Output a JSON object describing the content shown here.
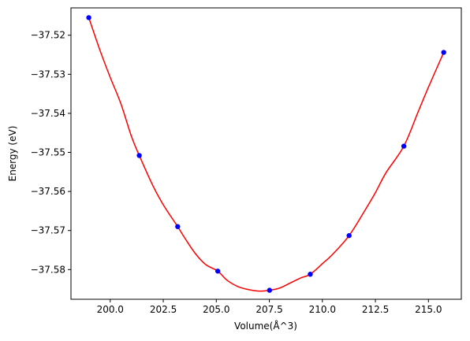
{
  "chart_data": {
    "type": "scatter",
    "title": "",
    "xlabel": "Volume(Å^3)",
    "ylabel": "Energy (eV)",
    "xlim": [
      198.15,
      216.55
    ],
    "ylim": [
      -37.5876,
      -37.513
    ],
    "x_ticks": [
      200.0,
      202.5,
      205.0,
      207.5,
      210.0,
      212.5,
      215.0
    ],
    "x_tick_labels": [
      "200.0",
      "202.5",
      "205.0",
      "207.5",
      "210.0",
      "212.5",
      "215.0"
    ],
    "y_ticks": [
      -37.52,
      -37.53,
      -37.54,
      -37.55,
      -37.56,
      -37.57,
      -37.58
    ],
    "y_tick_labels": [
      "−37.52",
      "−37.53",
      "−37.54",
      "−37.55",
      "−37.56",
      "−37.57",
      "−37.58"
    ],
    "grid": false,
    "series": [
      {
        "kind": "points",
        "color": "#0000ff",
        "x": [
          198.99,
          201.37,
          203.18,
          205.07,
          207.51,
          209.43,
          211.26,
          213.84,
          215.72
        ],
        "y": [
          -37.5155,
          -37.5508,
          -37.569,
          -37.5804,
          -37.5853,
          -37.5812,
          -37.5713,
          -37.5484,
          -37.5244
        ]
      },
      {
        "kind": "fit-curve",
        "color": "#ff0000",
        "x": [
          198.99,
          199.5,
          200.0,
          200.5,
          201.0,
          201.37,
          202.0,
          202.5,
          203.18,
          203.5,
          204.0,
          204.5,
          205.07,
          205.5,
          206.0,
          206.5,
          207.0,
          207.5,
          208.0,
          208.5,
          209.0,
          209.43,
          210.0,
          210.5,
          211.26,
          212.0,
          212.5,
          213.0,
          213.84,
          214.5,
          215.0,
          215.72
        ],
        "y": [
          -37.5155,
          -37.5236,
          -37.5308,
          -37.5375,
          -37.5459,
          -37.5508,
          -37.5584,
          -37.5634,
          -37.569,
          -37.5718,
          -37.5758,
          -37.5787,
          -37.5804,
          -37.5827,
          -37.5843,
          -37.5851,
          -37.5855,
          -37.5853,
          -37.5847,
          -37.5834,
          -37.5821,
          -37.5812,
          -37.5785,
          -37.576,
          -37.5713,
          -37.5649,
          -37.5603,
          -37.5552,
          -37.5484,
          -37.5398,
          -37.5333,
          -37.5244
        ]
      }
    ]
  }
}
